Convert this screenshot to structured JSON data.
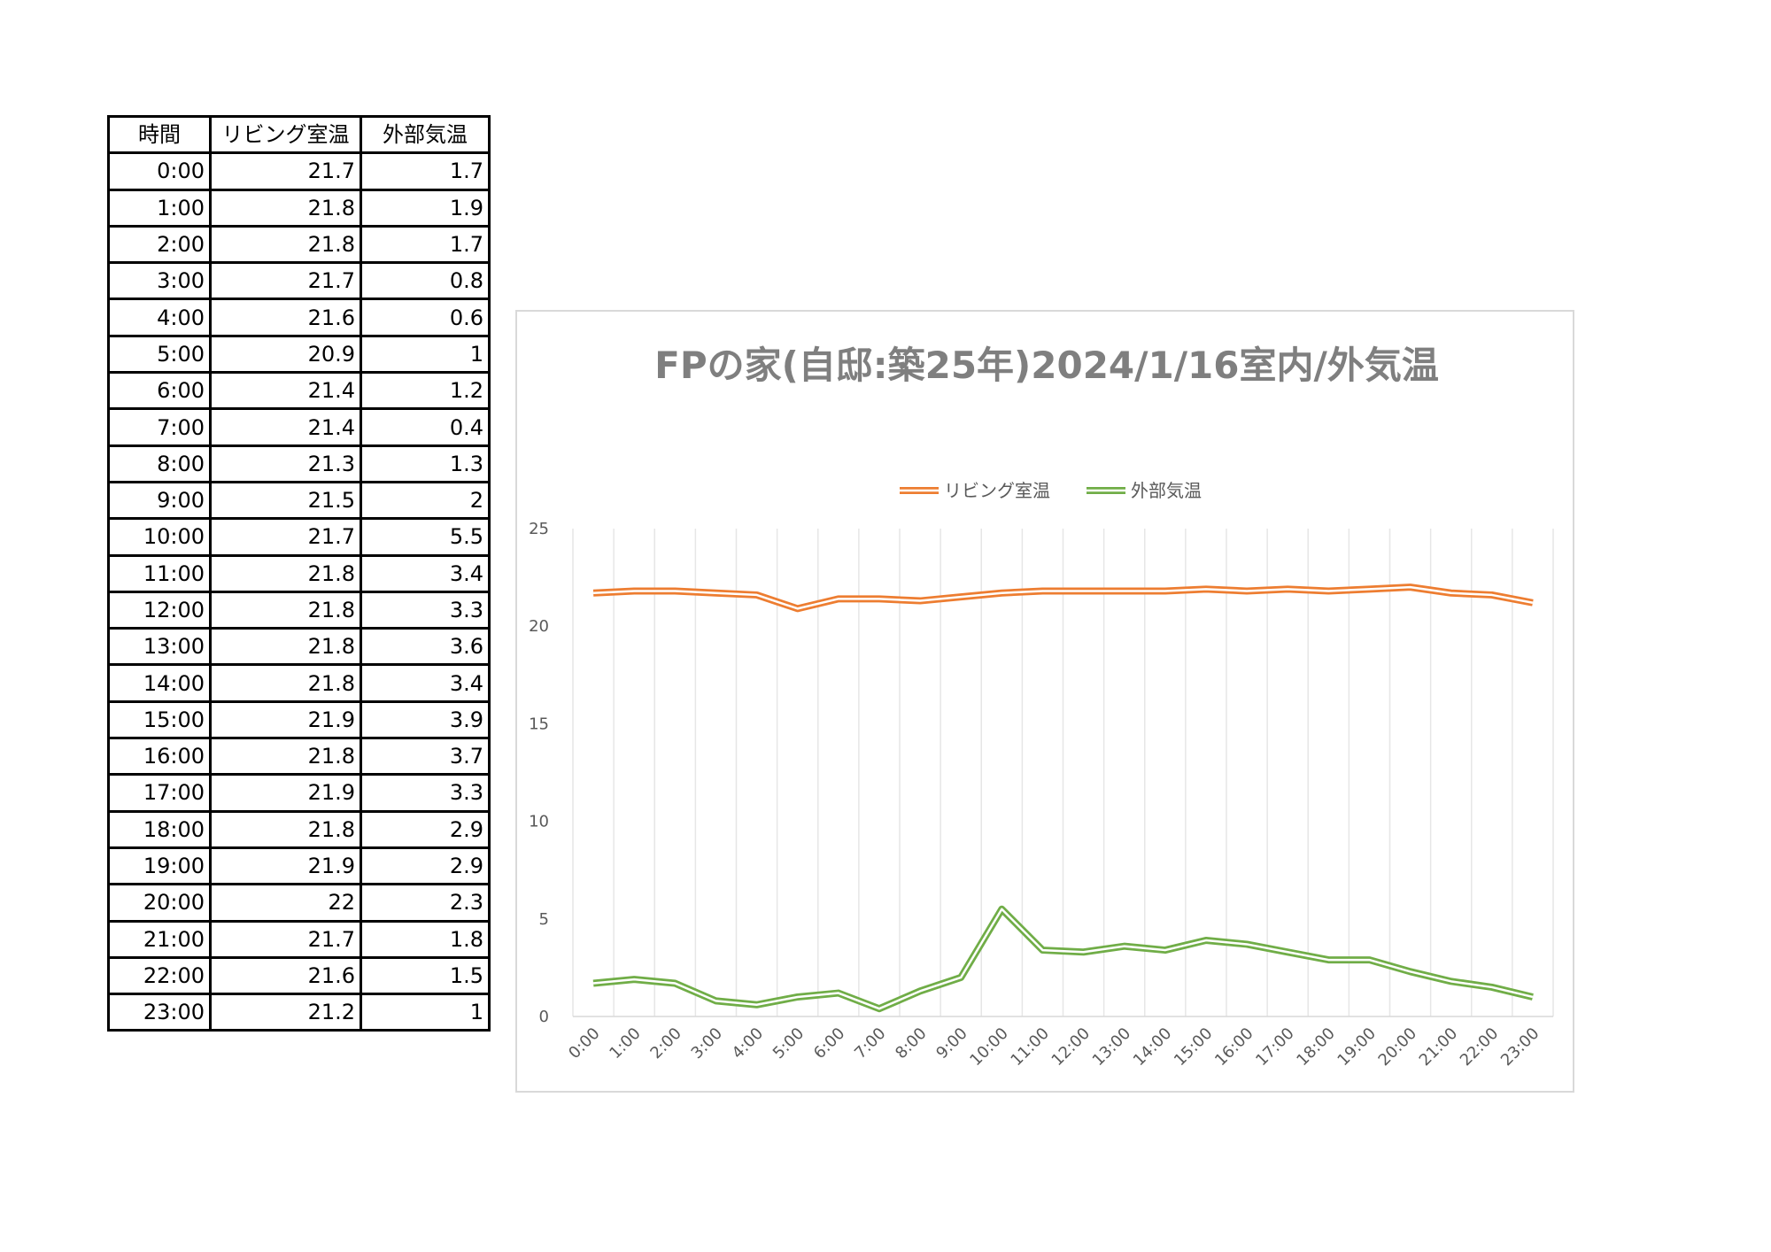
{
  "table": {
    "headers": [
      "時間",
      "リビング室温",
      "外部気温"
    ],
    "rows": [
      [
        "0:00",
        "21.7",
        "1.7"
      ],
      [
        "1:00",
        "21.8",
        "1.9"
      ],
      [
        "2:00",
        "21.8",
        "1.7"
      ],
      [
        "3:00",
        "21.7",
        "0.8"
      ],
      [
        "4:00",
        "21.6",
        "0.6"
      ],
      [
        "5:00",
        "20.9",
        "1"
      ],
      [
        "6:00",
        "21.4",
        "1.2"
      ],
      [
        "7:00",
        "21.4",
        "0.4"
      ],
      [
        "8:00",
        "21.3",
        "1.3"
      ],
      [
        "9:00",
        "21.5",
        "2"
      ],
      [
        "10:00",
        "21.7",
        "5.5"
      ],
      [
        "11:00",
        "21.8",
        "3.4"
      ],
      [
        "12:00",
        "21.8",
        "3.3"
      ],
      [
        "13:00",
        "21.8",
        "3.6"
      ],
      [
        "14:00",
        "21.8",
        "3.4"
      ],
      [
        "15:00",
        "21.9",
        "3.9"
      ],
      [
        "16:00",
        "21.8",
        "3.7"
      ],
      [
        "17:00",
        "21.9",
        "3.3"
      ],
      [
        "18:00",
        "21.8",
        "2.9"
      ],
      [
        "19:00",
        "21.9",
        "2.9"
      ],
      [
        "20:00",
        "22",
        "2.3"
      ],
      [
        "21:00",
        "21.7",
        "1.8"
      ],
      [
        "22:00",
        "21.6",
        "1.5"
      ],
      [
        "23:00",
        "21.2",
        "1"
      ]
    ]
  },
  "chart_data": {
    "type": "line",
    "title": "FPの家(自邸:築25年)2024/1/16室内/外気温",
    "categories": [
      "0:00",
      "1:00",
      "2:00",
      "3:00",
      "4:00",
      "5:00",
      "6:00",
      "7:00",
      "8:00",
      "9:00",
      "10:00",
      "11:00",
      "12:00",
      "13:00",
      "14:00",
      "15:00",
      "16:00",
      "17:00",
      "18:00",
      "19:00",
      "20:00",
      "21:00",
      "22:00",
      "23:00"
    ],
    "series": [
      {
        "name": "リビング室温",
        "color": "#ed7d31",
        "values": [
          21.7,
          21.8,
          21.8,
          21.7,
          21.6,
          20.9,
          21.4,
          21.4,
          21.3,
          21.5,
          21.7,
          21.8,
          21.8,
          21.8,
          21.8,
          21.9,
          21.8,
          21.9,
          21.8,
          21.9,
          22,
          21.7,
          21.6,
          21.2
        ]
      },
      {
        "name": "外部気温",
        "color": "#70ad47",
        "values": [
          1.7,
          1.9,
          1.7,
          0.8,
          0.6,
          1,
          1.2,
          0.4,
          1.3,
          2,
          5.5,
          3.4,
          3.3,
          3.6,
          3.4,
          3.9,
          3.7,
          3.3,
          2.9,
          2.9,
          2.3,
          1.8,
          1.5,
          1
        ]
      }
    ],
    "y_ticks": [
      "0",
      "5",
      "10",
      "15",
      "20",
      "25"
    ],
    "ylim": [
      0,
      25
    ],
    "grid": "vertical",
    "legend_position": "top"
  }
}
